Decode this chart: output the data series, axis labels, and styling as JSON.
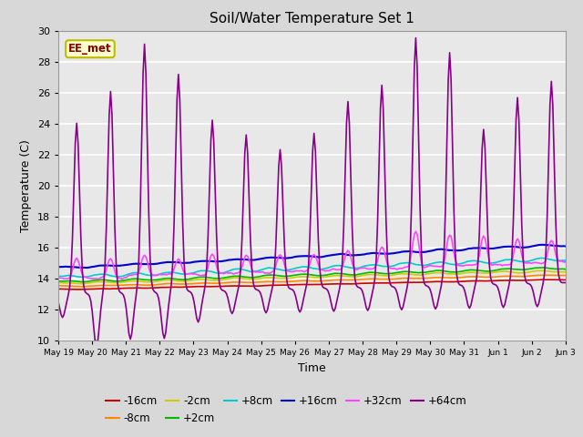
{
  "title": "Soil/Water Temperature Set 1",
  "xlabel": "Time",
  "ylabel": "Temperature (C)",
  "ylim": [
    10,
    30
  ],
  "fig_bg": "#d8d8d8",
  "plot_bg": "#e8e8e8",
  "grid_color": "#ffffff",
  "annotation_text": "EE_met",
  "annotation_bg": "#ffffcc",
  "annotation_border": "#bbbb00",
  "annotation_text_color": "#880000",
  "series": [
    {
      "label": "-16cm",
      "color": "#cc0000"
    },
    {
      "label": "-8cm",
      "color": "#ff8800"
    },
    {
      "label": "-2cm",
      "color": "#cccc00"
    },
    {
      "label": "+2cm",
      "color": "#00bb00"
    },
    {
      "label": "+8cm",
      "color": "#00cccc"
    },
    {
      "label": "+16cm",
      "color": "#0000cc"
    },
    {
      "label": "+32cm",
      "color": "#ff44ff"
    },
    {
      "label": "+64cm",
      "color": "#880088"
    }
  ],
  "tick_labels": [
    "May 19",
    "May 20",
    "May 21",
    "May 22",
    "May 23",
    "May 24",
    "May 25",
    "May 26",
    "May 27",
    "May 28",
    "May 29",
    "May 30",
    "May 31",
    "Jun 1",
    "Jun 2",
    "Jun 3"
  ],
  "yticks": [
    10,
    12,
    14,
    16,
    18,
    20,
    22,
    24,
    26,
    28,
    30
  ]
}
